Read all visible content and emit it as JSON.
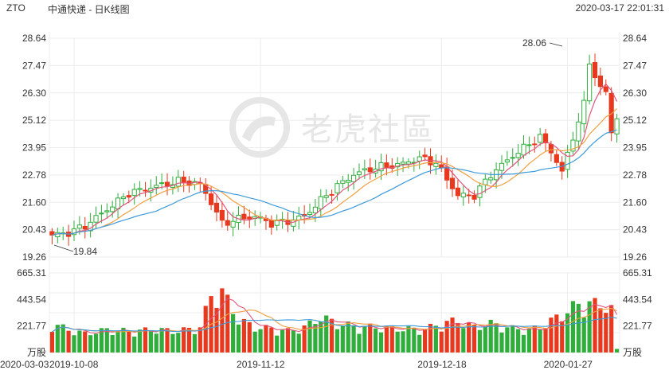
{
  "header": {
    "symbol": "ZTO",
    "title": "中通快递 - 日K线图",
    "timestamp": "2020-03-17 22:01:31"
  },
  "watermark": {
    "text": "老虎社區"
  },
  "colors": {
    "up": "#2fae3c",
    "down": "#e8391e",
    "ma_fast": "#e0557b",
    "ma_mid": "#f0a040",
    "ma_slow": "#3d9ad9",
    "grid": "#ececec"
  },
  "chart_data": {
    "type": "candlestick",
    "title": "中通快递 - 日K线图",
    "price_axis": {
      "ticks": [
        "28.64",
        "27.47",
        "26.30",
        "25.12",
        "23.95",
        "22.78",
        "21.60",
        "20.43",
        "19.26"
      ],
      "range": [
        19.26,
        28.64
      ]
    },
    "volume_axis": {
      "ticks": [
        "665.31",
        "443.54",
        "221.77"
      ],
      "unit": "万股",
      "range": [
        0,
        665.31
      ]
    },
    "x_labels": [
      "2019-10-08",
      "2019-11-12",
      "2019-12-18",
      "2020-01-27",
      "2020-03-03"
    ],
    "annotations": {
      "high": "28.06",
      "low": "19.84"
    },
    "anchors": [
      [
        0,
        20.2,
        230
      ],
      [
        3,
        20.3,
        180
      ],
      [
        6,
        20.6,
        150
      ],
      [
        10,
        21.3,
        180
      ],
      [
        14,
        22.0,
        170
      ],
      [
        19,
        22.3,
        180
      ],
      [
        23,
        22.5,
        170
      ],
      [
        27,
        22.4,
        200
      ],
      [
        29,
        21.6,
        450
      ],
      [
        31,
        20.7,
        480
      ],
      [
        34,
        20.9,
        260
      ],
      [
        37,
        21.0,
        200
      ],
      [
        40,
        20.7,
        190
      ],
      [
        43,
        20.8,
        170
      ],
      [
        46,
        21.0,
        200
      ],
      [
        49,
        21.7,
        280
      ],
      [
        52,
        22.3,
        230
      ],
      [
        55,
        22.8,
        210
      ],
      [
        59,
        23.1,
        200
      ],
      [
        63,
        23.2,
        190
      ],
      [
        67,
        23.5,
        180
      ],
      [
        70,
        23.3,
        210
      ],
      [
        72,
        22.6,
        240
      ],
      [
        74,
        21.9,
        250
      ],
      [
        77,
        21.9,
        200
      ],
      [
        80,
        22.8,
        230
      ],
      [
        84,
        23.6,
        190
      ],
      [
        87,
        24.1,
        180
      ],
      [
        89,
        24.4,
        200
      ],
      [
        91,
        23.8,
        250
      ],
      [
        93,
        22.9,
        300
      ],
      [
        95,
        24.4,
        360
      ],
      [
        97,
        25.8,
        380
      ],
      [
        98,
        27.6,
        400
      ],
      [
        100,
        26.5,
        360
      ],
      [
        101,
        26.3,
        400
      ],
      [
        102,
        24.6,
        350
      ],
      [
        103,
        25.3,
        300
      ]
    ]
  }
}
